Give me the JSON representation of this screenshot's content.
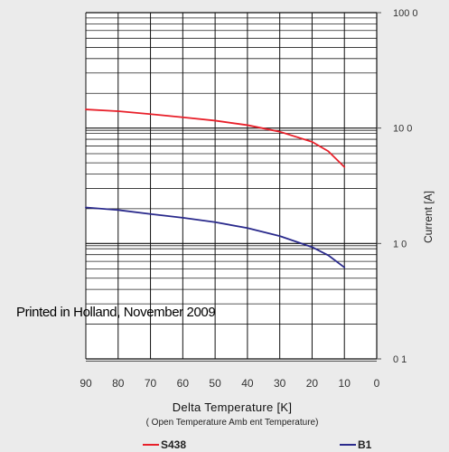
{
  "chart_data": {
    "type": "line",
    "xlabel": "Delta Temperature [K]",
    "xlabel_sub": "(  Open Temperature   Amb ent Temperature)",
    "ylabel": "Current [A]",
    "x_ticks": [
      "90",
      "80",
      "70",
      "60",
      "50",
      "40",
      "30",
      "20",
      "10",
      "0"
    ],
    "y_ticks": [
      "100 0",
      "10 0",
      "1 0",
      "0 1"
    ],
    "y_scale": "log",
    "xlim": [
      90,
      0
    ],
    "ylim": [
      0.1,
      100
    ],
    "grid": true,
    "legend_position": "bottom",
    "series": [
      {
        "name": "S438",
        "color": "#e8202a",
        "x": [
          90,
          80,
          70,
          60,
          50,
          40,
          30,
          20,
          15,
          10
        ],
        "y": [
          14.5,
          14.0,
          13.2,
          12.4,
          11.6,
          10.6,
          9.3,
          7.6,
          6.3,
          4.6
        ]
      },
      {
        "name": "B1",
        "color": "#2a2a8c",
        "x": [
          90,
          80,
          70,
          60,
          50,
          40,
          30,
          20,
          15,
          10
        ],
        "y": [
          2.05,
          1.95,
          1.8,
          1.67,
          1.53,
          1.36,
          1.16,
          0.93,
          0.79,
          0.62
        ]
      }
    ]
  },
  "overlay_text": "Printed in Holland, November 2009"
}
